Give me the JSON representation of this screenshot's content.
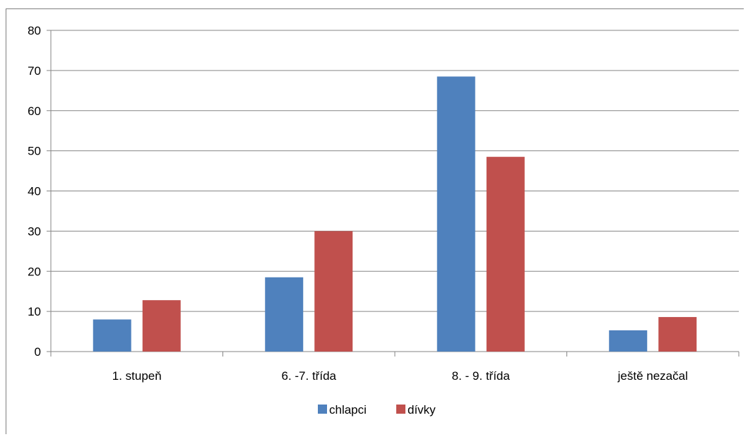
{
  "chart_data": {
    "type": "bar",
    "title": "",
    "xlabel": "",
    "ylabel": "",
    "categories": [
      "1. stupeň",
      "6. -7. třída",
      "8. - 9. třída",
      "ještě nezačal"
    ],
    "series": [
      {
        "name": "chlapci",
        "color": "#4f81bd",
        "values": [
          8,
          18.5,
          68.5,
          5.3
        ]
      },
      {
        "name": "dívky",
        "color": "#c0504d",
        "values": [
          12.8,
          30,
          48.5,
          8.6
        ]
      }
    ],
    "ylim": [
      0,
      80
    ],
    "yticks": [
      "0",
      "10",
      "20",
      "30",
      "40",
      "50",
      "60",
      "70",
      "80"
    ],
    "grid": true,
    "legend_position": "bottom"
  }
}
